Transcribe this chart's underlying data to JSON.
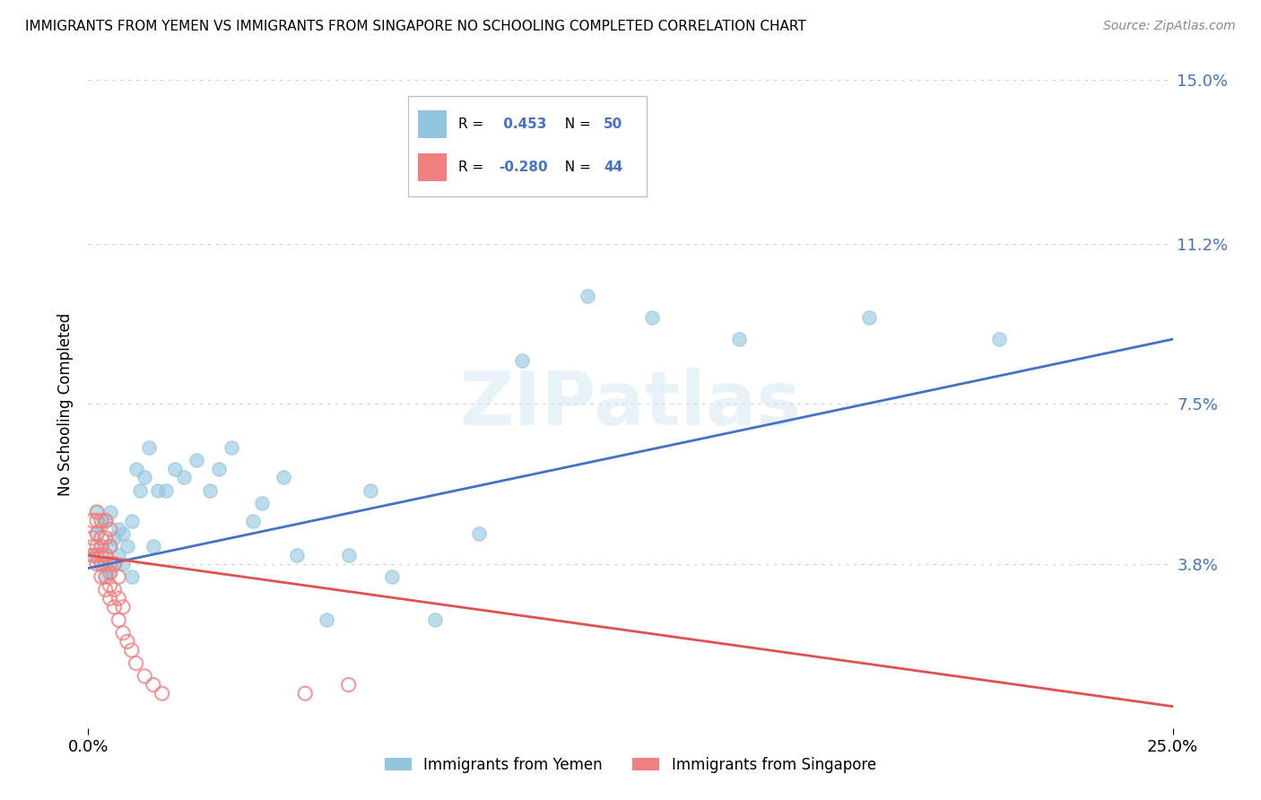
{
  "title": "IMMIGRANTS FROM YEMEN VS IMMIGRANTS FROM SINGAPORE NO SCHOOLING COMPLETED CORRELATION CHART",
  "source": "Source: ZipAtlas.com",
  "ylabel": "No Schooling Completed",
  "xlim": [
    0.0,
    0.25
  ],
  "ylim": [
    0.0,
    0.15
  ],
  "x_tick_labels": [
    "0.0%",
    "25.0%"
  ],
  "x_ticks": [
    0.0,
    0.25
  ],
  "y_tick_labels": [
    "",
    "3.8%",
    "7.5%",
    "11.2%",
    "15.0%"
  ],
  "y_ticks": [
    0.0,
    0.038,
    0.075,
    0.112,
    0.15
  ],
  "color_yemen": "#92C5DE",
  "color_singapore": "#F08080",
  "trendline_yemen": "#4472C4",
  "trendline_singapore": "#E05050",
  "background_color": "#FFFFFF",
  "grid_color": "#CCCCCC",
  "watermark": "ZIPatlas",
  "yemen_scatter_x": [
    0.001,
    0.002,
    0.002,
    0.003,
    0.003,
    0.003,
    0.004,
    0.004,
    0.004,
    0.005,
    0.005,
    0.005,
    0.006,
    0.006,
    0.007,
    0.007,
    0.008,
    0.008,
    0.009,
    0.01,
    0.01,
    0.011,
    0.012,
    0.013,
    0.014,
    0.015,
    0.016,
    0.018,
    0.02,
    0.022,
    0.025,
    0.028,
    0.03,
    0.033,
    0.038,
    0.04,
    0.045,
    0.048,
    0.055,
    0.06,
    0.065,
    0.07,
    0.08,
    0.09,
    0.1,
    0.115,
    0.13,
    0.15,
    0.18,
    0.21
  ],
  "yemen_scatter_y": [
    0.04,
    0.045,
    0.05,
    0.038,
    0.042,
    0.047,
    0.035,
    0.04,
    0.048,
    0.036,
    0.042,
    0.05,
    0.038,
    0.044,
    0.04,
    0.046,
    0.038,
    0.045,
    0.042,
    0.035,
    0.048,
    0.06,
    0.055,
    0.058,
    0.065,
    0.042,
    0.055,
    0.055,
    0.06,
    0.058,
    0.062,
    0.055,
    0.06,
    0.065,
    0.048,
    0.052,
    0.058,
    0.04,
    0.025,
    0.04,
    0.055,
    0.035,
    0.025,
    0.045,
    0.085,
    0.1,
    0.095,
    0.09,
    0.095,
    0.09
  ],
  "singapore_scatter_x": [
    0.001,
    0.001,
    0.001,
    0.001,
    0.002,
    0.002,
    0.002,
    0.002,
    0.002,
    0.002,
    0.003,
    0.003,
    0.003,
    0.003,
    0.003,
    0.003,
    0.004,
    0.004,
    0.004,
    0.004,
    0.004,
    0.004,
    0.005,
    0.005,
    0.005,
    0.005,
    0.005,
    0.005,
    0.006,
    0.006,
    0.006,
    0.007,
    0.007,
    0.007,
    0.008,
    0.008,
    0.009,
    0.01,
    0.011,
    0.013,
    0.015,
    0.017,
    0.05,
    0.06
  ],
  "singapore_scatter_y": [
    0.04,
    0.042,
    0.044,
    0.048,
    0.038,
    0.04,
    0.042,
    0.045,
    0.048,
    0.05,
    0.035,
    0.038,
    0.04,
    0.042,
    0.044,
    0.048,
    0.032,
    0.035,
    0.038,
    0.04,
    0.044,
    0.048,
    0.03,
    0.033,
    0.036,
    0.038,
    0.042,
    0.046,
    0.028,
    0.032,
    0.038,
    0.025,
    0.03,
    0.035,
    0.022,
    0.028,
    0.02,
    0.018,
    0.015,
    0.012,
    0.01,
    0.008,
    0.008,
    0.01
  ],
  "trendline_yemen_x0": 0.0,
  "trendline_yemen_y0": 0.037,
  "trendline_yemen_x1": 0.25,
  "trendline_yemen_y1": 0.09,
  "trendline_sing_x0": 0.0,
  "trendline_sing_y0": 0.04,
  "trendline_sing_x1": 0.25,
  "trendline_sing_y1": 0.005
}
